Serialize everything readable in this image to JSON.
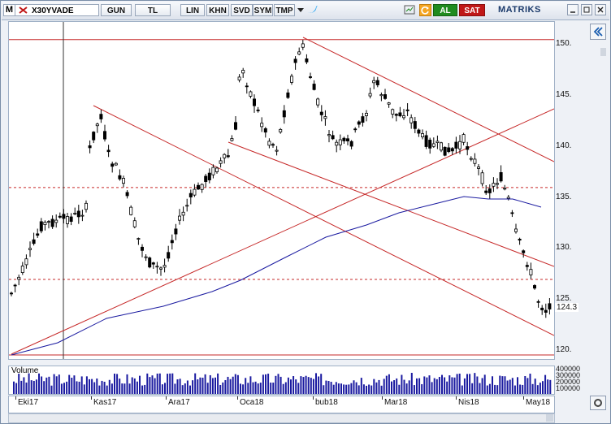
{
  "toolbar": {
    "symbol": "X30YVADE",
    "buttons": [
      "GUN",
      "TL",
      "LIN",
      "KHN",
      "SVD",
      "SYM",
      "TMP"
    ],
    "buy_label": "AL",
    "sell_label": "SAT",
    "brand": "MATRIKS",
    "window_letter": "M"
  },
  "colors": {
    "accent_green": "#1f8b1f",
    "accent_red": "#c01818",
    "candle_black": "#000000",
    "ma": "#1a1aa0",
    "trend": "#c62828"
  },
  "volume_label": "Volume",
  "volume_ticks": [
    "400000",
    "300000",
    "200000",
    "100000"
  ],
  "price_ticks": [
    "150.",
    "145.",
    "140.",
    "135.",
    "130.",
    "125.",
    "120."
  ],
  "last_price": "124.3",
  "x_labels": [
    "Eki17",
    "Kas17",
    "Ara17",
    "Oca18",
    "bub18",
    "Mar18",
    "Nis18",
    "May18"
  ],
  "chart_data": {
    "type": "candlestick",
    "title": "",
    "ylim": [
      119.5,
      152.5
    ],
    "horizontal_levels": [
      136.0,
      127.0
    ],
    "top_level": 150.5,
    "last": 124.3
  }
}
